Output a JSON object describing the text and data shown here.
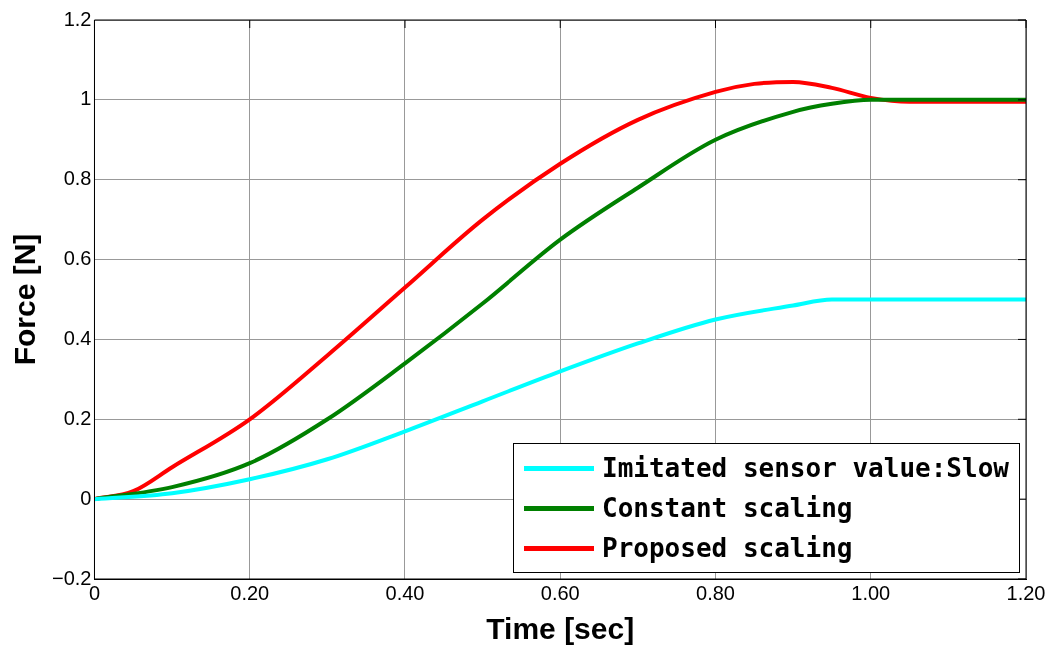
{
  "chart_data": {
    "type": "line",
    "xlabel": "Time [sec]",
    "ylabel": "Force [N]",
    "xlim": [
      0,
      1.2
    ],
    "xticks": [
      0,
      {
        "value": 0.2,
        "label": "0.20"
      },
      {
        "value": 0.4,
        "label": "0.40"
      },
      {
        "value": 0.6,
        "label": "0.60"
      },
      {
        "value": 0.8,
        "label": "0.80"
      },
      {
        "value": 1.0,
        "label": "1.00"
      },
      {
        "value": 1.2,
        "label": "1.20"
      }
    ],
    "ylim": [
      -0.2,
      1.2
    ],
    "yticks": [
      {
        "value": -0.2,
        "label": "−0.2"
      },
      0,
      0.2,
      0.4,
      0.6,
      0.8,
      1,
      1.2
    ],
    "grid": true,
    "legend": "bottom right",
    "marker": "none",
    "line_style": "solid",
    "series": [
      {
        "name": "Imitated sensor value:Slow",
        "color": "#00ffff",
        "x": [
          0,
          0.1,
          0.2,
          0.3,
          0.4,
          0.5,
          0.6,
          0.7,
          0.8,
          0.9,
          0.95,
          1.0,
          1.2
        ],
        "values": [
          0,
          0.015,
          0.05,
          0.1,
          0.17,
          0.245,
          0.32,
          0.39,
          0.45,
          0.485,
          0.5,
          0.5,
          0.5
        ]
      },
      {
        "name": "Constant scaling",
        "color": "#008000",
        "x": [
          0,
          0.1,
          0.2,
          0.3,
          0.4,
          0.5,
          0.6,
          0.7,
          0.8,
          0.9,
          0.95,
          1.0,
          1.2
        ],
        "values": [
          0,
          0.03,
          0.09,
          0.2,
          0.34,
          0.49,
          0.65,
          0.78,
          0.9,
          0.97,
          0.99,
          1.0,
          1.0
        ]
      },
      {
        "name": "Proposed scaling",
        "color": "#ff0000",
        "x": [
          0,
          0.05,
          0.1,
          0.2,
          0.3,
          0.4,
          0.5,
          0.6,
          0.7,
          0.8,
          0.85,
          0.9,
          0.95,
          1.0,
          1.05,
          1.1,
          1.2
        ],
        "values": [
          0,
          0.02,
          0.08,
          0.2,
          0.36,
          0.53,
          0.7,
          0.84,
          0.95,
          1.02,
          1.04,
          1.045,
          1.03,
          1.005,
          0.995,
          0.995,
          0.995
        ]
      }
    ]
  }
}
